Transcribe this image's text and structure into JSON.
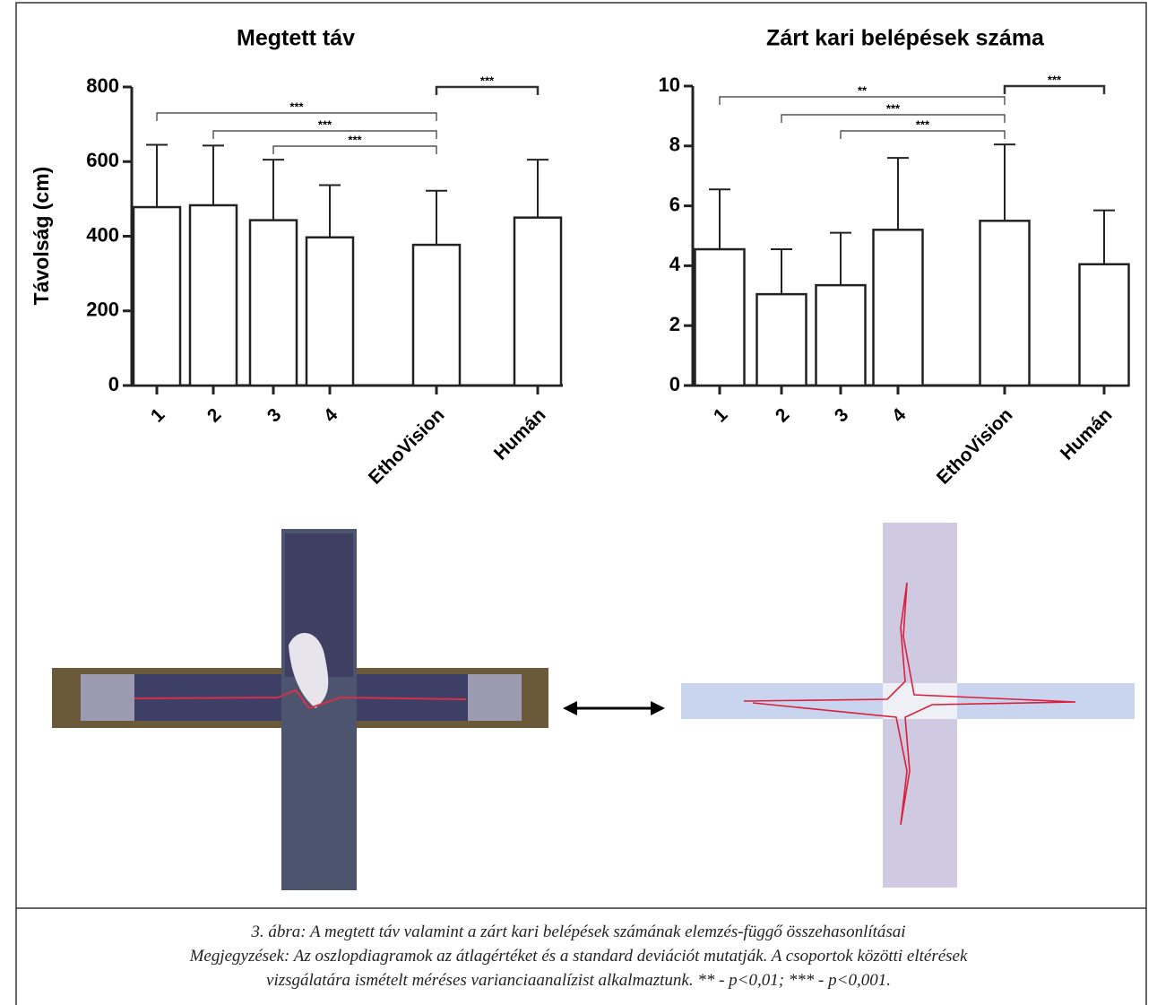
{
  "chart_data": [
    {
      "type": "bar",
      "title": "Megtett táv",
      "y_label": "Távolság (cm)",
      "categories": [
        "1",
        "2",
        "3",
        "4",
        "EthoVision",
        "Humán"
      ],
      "values": [
        478,
        483,
        443,
        397,
        377,
        450
      ],
      "errors": [
        167,
        160,
        162,
        140,
        145,
        155
      ],
      "ylim": [
        0,
        800
      ],
      "yticks": [
        0,
        200,
        400,
        600,
        800
      ],
      "annotations": [
        {
          "between": [
            "1",
            "EthoVision"
          ],
          "label": "***"
        },
        {
          "between": [
            "2",
            "EthoVision"
          ],
          "label": "***"
        },
        {
          "between": [
            "3",
            "EthoVision"
          ],
          "label": "***"
        },
        {
          "between": [
            "EthoVision",
            "Humán"
          ],
          "label": "***"
        }
      ]
    },
    {
      "type": "bar",
      "title": "Zárt kari belépések száma",
      "categories": [
        "1",
        "2",
        "3",
        "4",
        "EthoVision",
        "Humán"
      ],
      "values": [
        4.55,
        3.05,
        3.35,
        5.2,
        5.5,
        4.05
      ],
      "errors": [
        2.0,
        1.5,
        1.75,
        2.4,
        2.55,
        1.8
      ],
      "ylim": [
        0,
        10
      ],
      "yticks": [
        0,
        2,
        4,
        6,
        8,
        10
      ],
      "annotations": [
        {
          "between": [
            "1",
            "EthoVision"
          ],
          "label": "**"
        },
        {
          "between": [
            "2",
            "EthoVision"
          ],
          "label": "***"
        },
        {
          "between": [
            "3",
            "EthoVision"
          ],
          "label": "***"
        },
        {
          "between": [
            "EthoVision",
            "Humán"
          ],
          "label": "***"
        }
      ]
    }
  ],
  "caption": {
    "lines": [
      "3. ábra: A megtett táv valamint a zárt kari belépések számának elemzés-függő összehasonlításai",
      "Megjegyzések: Az oszlopdiagramok az átlagértéket és a standard deviációt mutatják. A csoportok közötti eltérések",
      "vizsgálatára ismételt méréses varianciaanalízist alkalmaztunk. ** - p<0,01; *** - p<0,001."
    ]
  }
}
